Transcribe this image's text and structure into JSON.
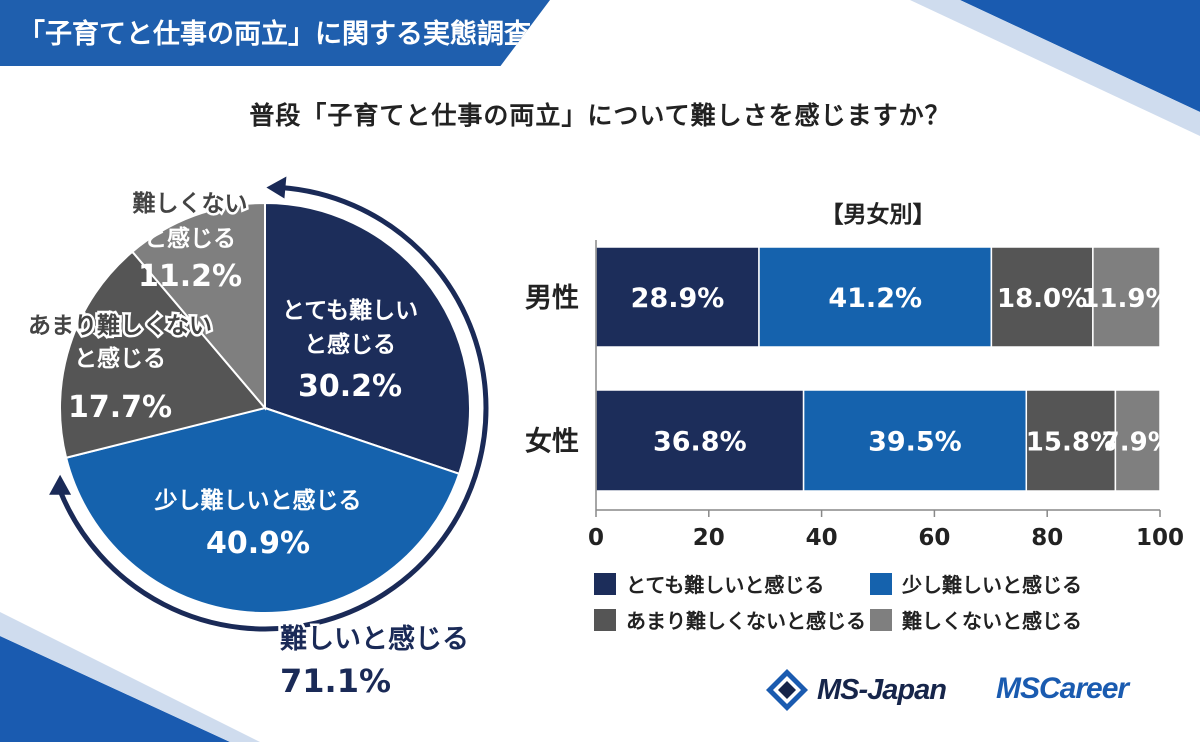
{
  "header": {
    "title": "「子育てと仕事の両立」に関する実態調査"
  },
  "question": "普段「子育てと仕事の両立」について難しさを感じますか？",
  "colors": {
    "navy": "#1c2d5a",
    "blue": "#1562ad",
    "dark_gray": "#555555",
    "gray": "#7f7f7f",
    "accent_navy": "#1a2a57"
  },
  "pie": {
    "slices": [
      {
        "label_lines": [
          "とても難しい",
          "と感じる"
        ],
        "percent_label": "30.2%"
      },
      {
        "label_lines": [
          "少し難しいと感じる"
        ],
        "percent_label": "40.9%"
      },
      {
        "label_lines": [
          "あまり難しくない",
          "と感じる"
        ],
        "percent_label": "17.7%"
      },
      {
        "label_lines": [
          "難しくない",
          "と感じる"
        ],
        "percent_label": "11.2%"
      }
    ],
    "summary_label": "難しいと感じる",
    "summary_value": "71.1%"
  },
  "bar_section_title": "【男女別】",
  "legend": [
    "とても難しいと感じる",
    "少し難しいと感じる",
    "あまり難しくないと感じる",
    "難しくないと感じる"
  ],
  "logos": {
    "ms_japan": "MS-Japan",
    "ms_career": "MSCareer"
  },
  "chart_data": [
    {
      "type": "pie",
      "categories": [
        "とても難しいと感じる",
        "少し難しいと感じる",
        "あまり難しくないと感じる",
        "難しくないと感じる"
      ],
      "values": [
        30.2,
        40.9,
        17.7,
        11.2
      ]
    },
    {
      "type": "bar",
      "orientation": "horizontal",
      "stacked": true,
      "title": "【男女別】",
      "categories": [
        "男性",
        "女性"
      ],
      "series": [
        {
          "name": "とても難しいと感じる",
          "values": [
            28.9,
            36.8
          ],
          "labels": [
            "28.9%",
            "36.8%"
          ]
        },
        {
          "name": "少し難しいと感じる",
          "values": [
            41.2,
            39.5
          ],
          "labels": [
            "41.2%",
            "39.5%"
          ]
        },
        {
          "name": "あまり難しくないと感じる",
          "values": [
            18.0,
            15.8
          ],
          "labels": [
            "18.0%",
            "15.8%"
          ]
        },
        {
          "name": "難しくないと感じる",
          "values": [
            11.9,
            7.9
          ],
          "labels": [
            "11.9%",
            "7.9%"
          ]
        }
      ],
      "xlim": [
        0,
        100
      ],
      "xticks": [
        "0",
        "20",
        "40",
        "60",
        "80",
        "100"
      ],
      "legend_position": "bottom"
    }
  ]
}
